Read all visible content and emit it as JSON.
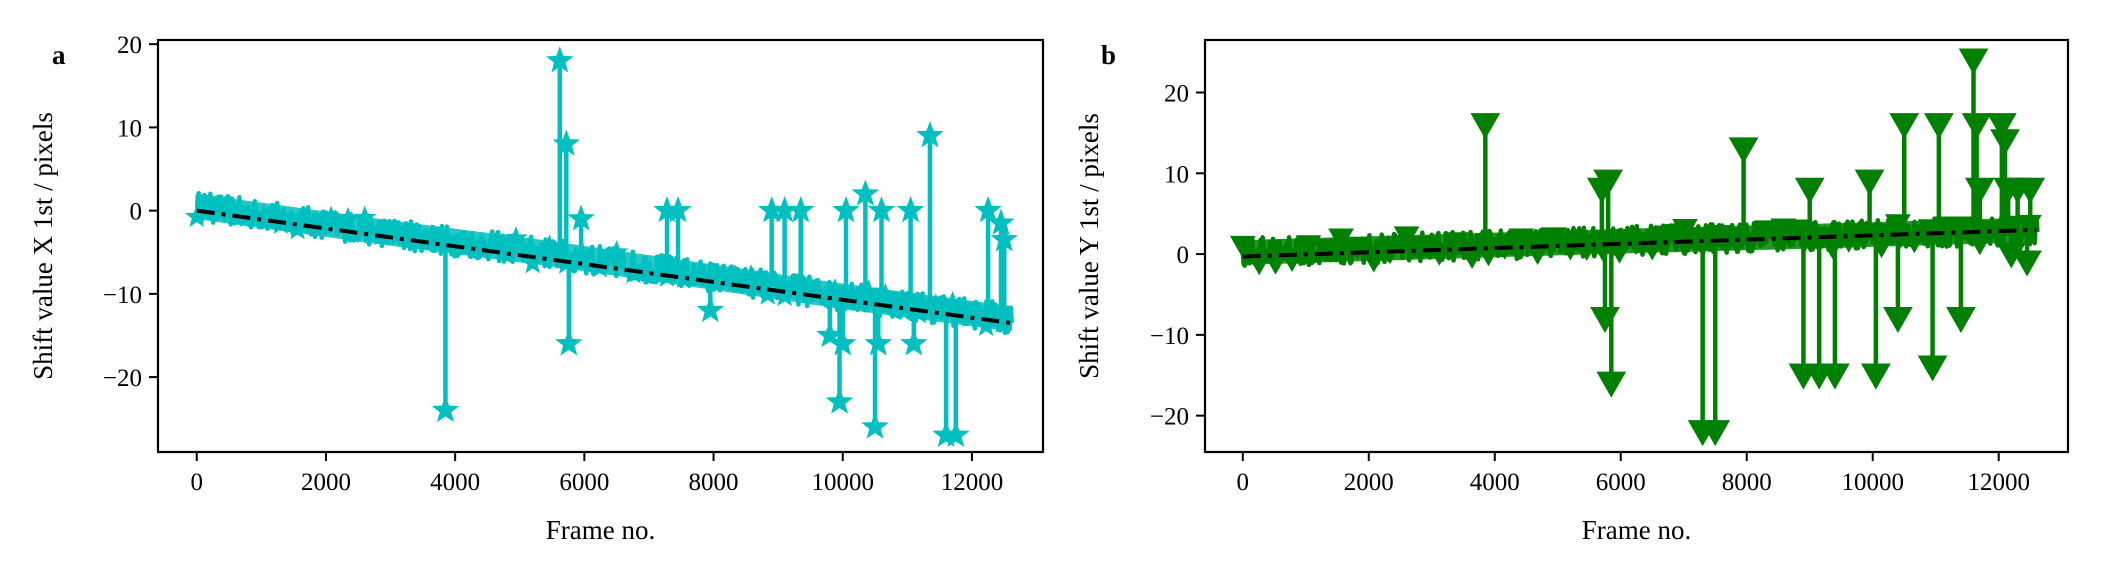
{
  "chart_data": [
    {
      "type": "scatter",
      "panel_label": "a",
      "xlabel": "Frame no.",
      "ylabel": "Shift value X 1st / pixels",
      "xlim": [
        -600,
        13100
      ],
      "ylim": [
        -29,
        20.5
      ],
      "xticks": [
        0,
        2000,
        4000,
        6000,
        8000,
        10000,
        12000
      ],
      "yticks": [
        20,
        10,
        0,
        -10,
        -20
      ],
      "ytick_labels": [
        "20",
        "10",
        "0",
        "−10",
        "−20"
      ],
      "series_color": "#00bfc0",
      "trend_color": "#000000",
      "marker": "star",
      "band": [
        {
          "x": 0,
          "y": 0.5
        },
        {
          "x": 3000,
          "y": -2.7
        },
        {
          "x": 5500,
          "y": -5.2
        },
        {
          "x": 8000,
          "y": -8.0
        },
        {
          "x": 10000,
          "y": -10.3
        },
        {
          "x": 12600,
          "y": -13.0
        }
      ],
      "band_halfwidth": 1.8,
      "outliers": [
        {
          "x": 3850,
          "y": -24
        },
        {
          "x": 5620,
          "y": 18
        },
        {
          "x": 5720,
          "y": 8
        },
        {
          "x": 5760,
          "y": -16
        },
        {
          "x": 5950,
          "y": -1
        },
        {
          "x": 7280,
          "y": 0
        },
        {
          "x": 7450,
          "y": 0
        },
        {
          "x": 7950,
          "y": -12
        },
        {
          "x": 8900,
          "y": 0
        },
        {
          "x": 9100,
          "y": 0
        },
        {
          "x": 9350,
          "y": 0
        },
        {
          "x": 9800,
          "y": -15
        },
        {
          "x": 9950,
          "y": -23
        },
        {
          "x": 10050,
          "y": 0
        },
        {
          "x": 10000,
          "y": -16
        },
        {
          "x": 10350,
          "y": 2
        },
        {
          "x": 10500,
          "y": -26
        },
        {
          "x": 10550,
          "y": -16
        },
        {
          "x": 10600,
          "y": 0
        },
        {
          "x": 11050,
          "y": 0
        },
        {
          "x": 11100,
          "y": -16
        },
        {
          "x": 11350,
          "y": 9
        },
        {
          "x": 11600,
          "y": -27
        },
        {
          "x": 11750,
          "y": -27
        },
        {
          "x": 12250,
          "y": 0
        },
        {
          "x": 12450,
          "y": -1.5
        },
        {
          "x": 12500,
          "y": -3.5
        }
      ],
      "trend": [
        {
          "x": 0,
          "y": 0
        },
        {
          "x": 12600,
          "y": -13.5
        }
      ]
    },
    {
      "type": "scatter",
      "panel_label": "b",
      "xlabel": "Frame no.",
      "ylabel": "Shift value Y 1st / pixels",
      "xlim": [
        -600,
        13100
      ],
      "ylim": [
        -24.5,
        26.5
      ],
      "xticks": [
        0,
        2000,
        4000,
        6000,
        8000,
        10000,
        12000
      ],
      "yticks": [
        20,
        10,
        0,
        -10,
        -20
      ],
      "ytick_labels": [
        "20",
        "10",
        "0",
        "−10",
        "−20"
      ],
      "series_color": "#008000",
      "trend_color": "#000000",
      "marker": "triangle_down",
      "band": [
        {
          "x": 0,
          "y": 0.2
        },
        {
          "x": 3000,
          "y": 0.9
        },
        {
          "x": 6000,
          "y": 1.6
        },
        {
          "x": 9000,
          "y": 2.2
        },
        {
          "x": 12600,
          "y": 3.0
        }
      ],
      "band_halfwidth": 1.8,
      "outliers": [
        {
          "x": 3850,
          "y": 16
        },
        {
          "x": 5700,
          "y": 8
        },
        {
          "x": 5750,
          "y": -8
        },
        {
          "x": 5800,
          "y": 9
        },
        {
          "x": 5850,
          "y": -16
        },
        {
          "x": 7300,
          "y": -22
        },
        {
          "x": 7500,
          "y": -22
        },
        {
          "x": 7950,
          "y": 13
        },
        {
          "x": 8900,
          "y": -15
        },
        {
          "x": 9000,
          "y": 8
        },
        {
          "x": 9150,
          "y": -15
        },
        {
          "x": 9400,
          "y": -15
        },
        {
          "x": 9950,
          "y": 9
        },
        {
          "x": 10050,
          "y": -15
        },
        {
          "x": 10400,
          "y": -8
        },
        {
          "x": 10500,
          "y": 16
        },
        {
          "x": 10950,
          "y": -14
        },
        {
          "x": 11050,
          "y": 16
        },
        {
          "x": 11400,
          "y": -8
        },
        {
          "x": 11600,
          "y": 24
        },
        {
          "x": 11650,
          "y": 16
        },
        {
          "x": 11700,
          "y": 8
        },
        {
          "x": 12050,
          "y": 16
        },
        {
          "x": 12100,
          "y": 14
        },
        {
          "x": 12150,
          "y": 8
        },
        {
          "x": 12200,
          "y": 0
        },
        {
          "x": 12300,
          "y": 8
        },
        {
          "x": 12450,
          "y": -1
        },
        {
          "x": 12500,
          "y": 8
        }
      ],
      "trend": [
        {
          "x": 0,
          "y": -0.3
        },
        {
          "x": 12600,
          "y": 3.0
        }
      ]
    }
  ]
}
